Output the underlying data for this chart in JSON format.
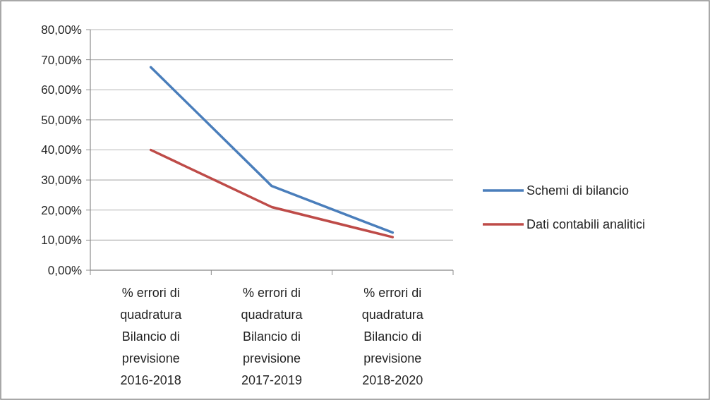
{
  "chart_data": {
    "type": "line",
    "categories": [
      "% errori di quadratura Bilancio di previsione 2016-2018",
      "% errori di quadratura Bilancio di previsione 2017-2019",
      "% errori di quadratura Bilancio di previsione 2018-2020"
    ],
    "series": [
      {
        "name": "Schemi di bilancio",
        "color": "#4a7ebb",
        "values": [
          67.5,
          28,
          12.5
        ]
      },
      {
        "name": "Dati contabili analitici",
        "color": "#be4b48",
        "values": [
          40,
          21,
          11
        ]
      }
    ],
    "ylim": [
      0,
      80
    ],
    "yticks": [
      {
        "value": 0,
        "label": "0,00%"
      },
      {
        "value": 10,
        "label": "10,00%"
      },
      {
        "value": 20,
        "label": "20,00%"
      },
      {
        "value": 30,
        "label": "30,00%"
      },
      {
        "value": 40,
        "label": "40,00%"
      },
      {
        "value": 50,
        "label": "50,00%"
      },
      {
        "value": 60,
        "label": "60,00%"
      },
      {
        "value": 70,
        "label": "70,00%"
      },
      {
        "value": 80,
        "label": "80,00%"
      }
    ],
    "grid": "y",
    "legend": "right",
    "marker": "none",
    "line_style": "solid"
  }
}
